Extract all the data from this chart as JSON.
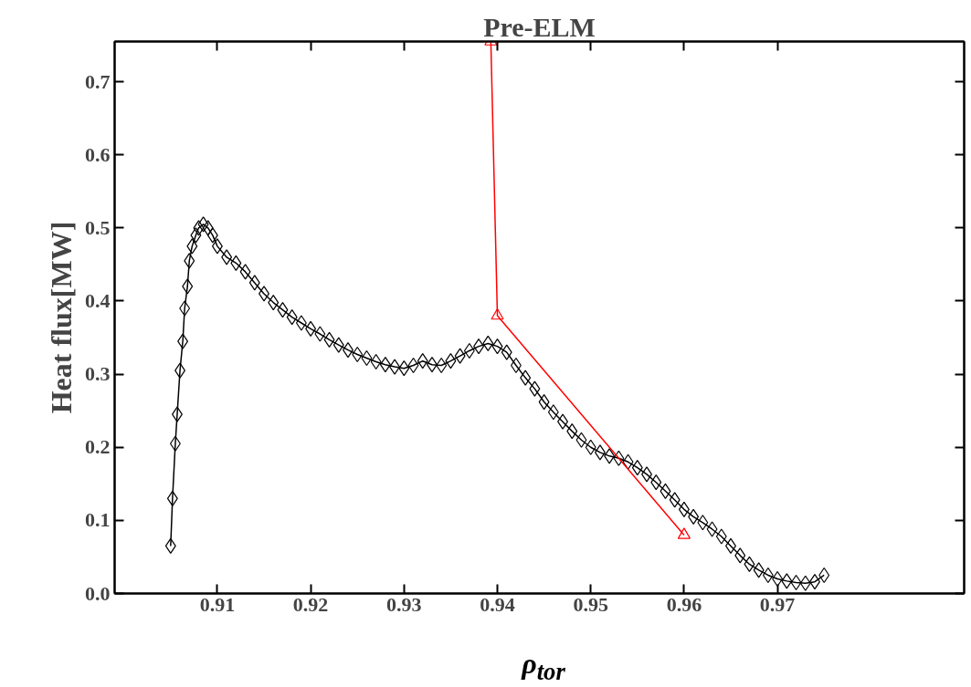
{
  "chart_data": {
    "type": "line",
    "title": "Pre-ELM",
    "xlabel": "ρ$_{tor}$",
    "ylabel": "Heat flux[MW]",
    "xlim": [
      0.899,
      0.99
    ],
    "ylim": [
      0,
      0.755
    ],
    "xticks": [
      0.91,
      0.92,
      0.93,
      0.94,
      0.95,
      0.96,
      0.97
    ],
    "yticks": [
      {
        "value": 0,
        "label": "0.0"
      },
      0.1,
      0.2,
      0.3,
      0.4,
      0.5,
      0.6,
      0.7
    ],
    "grid": false,
    "line_style": "solid",
    "series": [
      {
        "color": "#000000",
        "marker": "diamond",
        "x": [
          0.905,
          0.9052,
          0.9055,
          0.9057,
          0.906,
          0.9063,
          0.9065,
          0.9068,
          0.907,
          0.9073,
          0.9077,
          0.908,
          0.9085,
          0.909,
          0.9095,
          0.91,
          0.911,
          0.912,
          0.913,
          0.914,
          0.915,
          0.916,
          0.917,
          0.918,
          0.919,
          0.92,
          0.921,
          0.922,
          0.923,
          0.924,
          0.925,
          0.926,
          0.927,
          0.928,
          0.929,
          0.93,
          0.931,
          0.932,
          0.933,
          0.934,
          0.935,
          0.936,
          0.937,
          0.938,
          0.939,
          0.94,
          0.941,
          0.942,
          0.943,
          0.944,
          0.945,
          0.946,
          0.947,
          0.948,
          0.949,
          0.95,
          0.951,
          0.952,
          0.953,
          0.954,
          0.955,
          0.956,
          0.957,
          0.958,
          0.959,
          0.96,
          0.961,
          0.962,
          0.963,
          0.964,
          0.965,
          0.966,
          0.967,
          0.968,
          0.969,
          0.97,
          0.971,
          0.972,
          0.973,
          0.974,
          0.975
        ],
        "values": [
          0.065,
          0.13,
          0.205,
          0.245,
          0.305,
          0.345,
          0.39,
          0.42,
          0.455,
          0.475,
          0.49,
          0.5,
          0.505,
          0.5,
          0.49,
          0.475,
          0.46,
          0.452,
          0.44,
          0.425,
          0.41,
          0.398,
          0.388,
          0.378,
          0.37,
          0.362,
          0.355,
          0.347,
          0.34,
          0.333,
          0.327,
          0.322,
          0.317,
          0.313,
          0.31,
          0.308,
          0.312,
          0.318,
          0.313,
          0.312,
          0.318,
          0.325,
          0.332,
          0.338,
          0.342,
          0.338,
          0.33,
          0.312,
          0.295,
          0.28,
          0.262,
          0.248,
          0.235,
          0.222,
          0.21,
          0.2,
          0.193,
          0.188,
          0.185,
          0.18,
          0.172,
          0.163,
          0.152,
          0.14,
          0.128,
          0.115,
          0.105,
          0.097,
          0.088,
          0.078,
          0.065,
          0.052,
          0.04,
          0.032,
          0.025,
          0.02,
          0.017,
          0.015,
          0.014,
          0.016,
          0.025
        ]
      },
      {
        "color": "#ff0000",
        "marker": "triangle",
        "x": [
          0.9393,
          0.94,
          0.96
        ],
        "values": [
          0.755,
          0.38,
          0.08
        ]
      }
    ]
  }
}
